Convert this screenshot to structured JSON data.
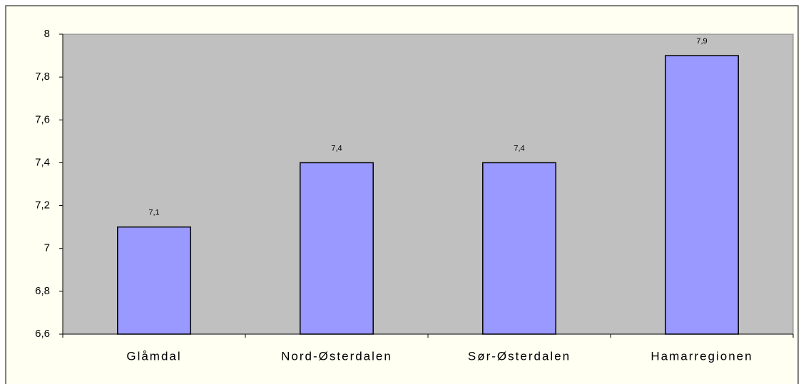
{
  "chart_data": {
    "type": "bar",
    "categories": [
      "Glåmdal",
      "Nord-Østerdalen",
      "Sør-Østerdalen",
      "Hamarregionen"
    ],
    "values": [
      7.1,
      7.4,
      7.4,
      7.9
    ],
    "value_labels": [
      "7,1",
      "7,4",
      "7,4",
      "7,9"
    ],
    "color": "#9999ff",
    "ylim": [
      6.6,
      8
    ],
    "yticks": [
      {
        "value": 6.6,
        "label": "6,6"
      },
      {
        "value": 6.8,
        "label": "6,8"
      },
      7,
      {
        "value": 7.2,
        "label": "7,2"
      },
      {
        "value": 7.4,
        "label": "7,4"
      },
      {
        "value": 7.6,
        "label": "7,6"
      },
      {
        "value": 7.8,
        "label": "7,8"
      },
      8
    ],
    "grid": false
  }
}
